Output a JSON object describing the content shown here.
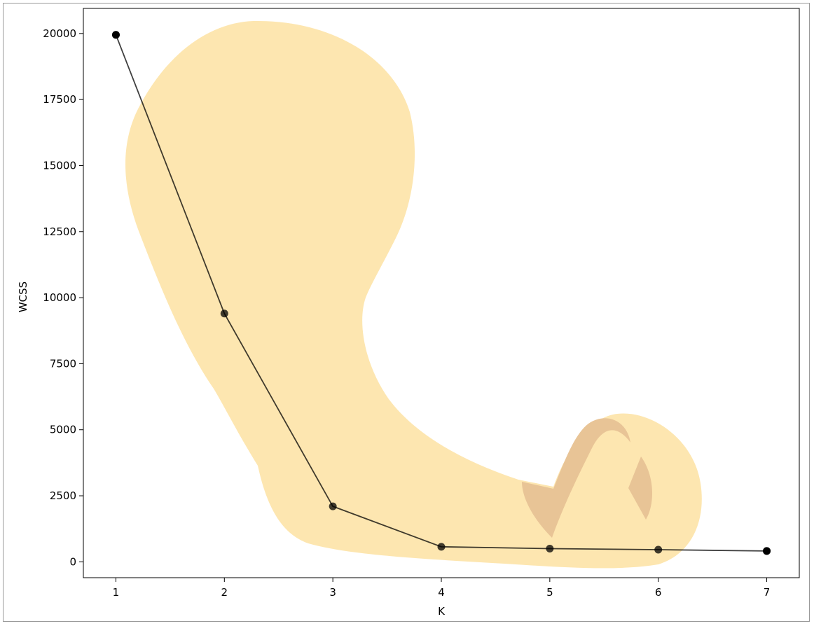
{
  "chart_data": {
    "type": "line",
    "title": "",
    "xlabel": "K",
    "ylabel": "WCSS",
    "x": [
      1,
      2,
      3,
      4,
      5,
      6,
      7
    ],
    "series": [
      {
        "values": [
          19950,
          9400,
          2100,
          570,
          500,
          460,
          410
        ]
      }
    ],
    "xticks": [
      "1",
      "2",
      "3",
      "4",
      "5",
      "6",
      "7"
    ],
    "yticks": [
      "0",
      "2500",
      "5000",
      "7500",
      "10000",
      "12500",
      "15000",
      "17500",
      "20000"
    ],
    "xlim": [
      0.7,
      7.3
    ],
    "ylim": [
      -600,
      20950
    ],
    "grid": false,
    "legend": "none",
    "line_color": "#000000",
    "overlay_color": "#fde6b0",
    "overlay_shade_color": "#e8c496"
  }
}
